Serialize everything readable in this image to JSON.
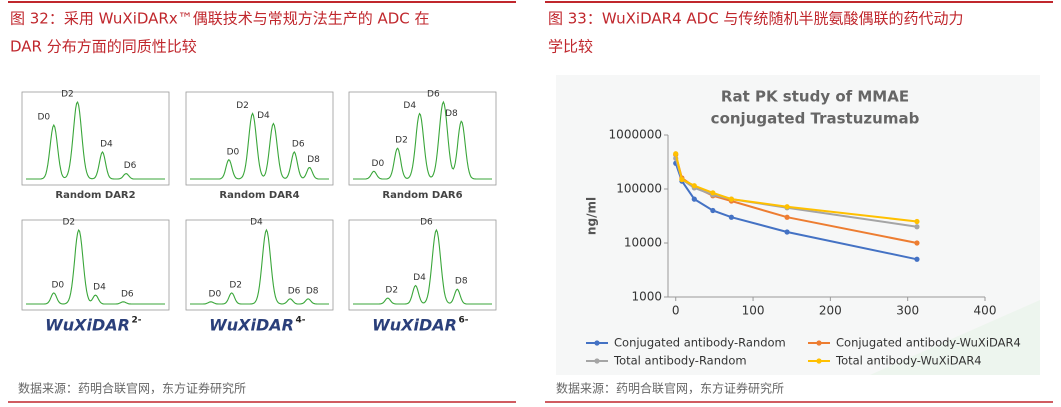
{
  "left": {
    "title_lines": [
      "图 32：采用 WuXiDARx™偶联技术与常规方法生产的 ADC 在",
      "DAR 分布方面的同质性比较"
    ],
    "panels": [
      {
        "caption": "Random DAR2",
        "peaks": [
          "D0",
          "D2",
          "D4",
          "D6"
        ]
      },
      {
        "caption": "Random DAR4",
        "peaks": [
          "D0",
          "D2",
          "D4",
          "D6",
          "D8"
        ]
      },
      {
        "caption": "Random DAR6",
        "peaks": [
          "D0",
          "D2",
          "D4",
          "D6",
          "D8"
        ]
      },
      {
        "logo": "WuXiDAR",
        "superscript": "2-",
        "peaks": [
          "D0",
          "D2",
          "D4",
          "D6"
        ]
      },
      {
        "logo": "WuXiDAR",
        "superscript": "4-",
        "peaks": [
          "D0",
          "D2",
          "D4",
          "D6",
          "D8"
        ]
      },
      {
        "logo": "WuXiDAR",
        "superscript": "6-",
        "peaks": [
          "D2",
          "D4",
          "D6",
          "D8"
        ]
      }
    ],
    "source": "数据来源：药明合联官网，东方证券研究所"
  },
  "right": {
    "title_lines": [
      "图 33：WuXiDAR4 ADC 与传统随机半胱氨酸偶联的药代动力",
      "学比较"
    ],
    "source": "数据来源：药明合联官网，东方证券研究所"
  },
  "chart_data": {
    "type": "line",
    "title": [
      "Rat PK study of MMAE",
      "conjugated Trastuzumab"
    ],
    "y_label": "ng/ml",
    "log_y": true,
    "xlim": [
      -10,
      400
    ],
    "xticks": [
      0,
      100,
      200,
      300,
      400
    ],
    "ylim": [
      1000,
      1000000
    ],
    "yticks": [
      1000,
      10000,
      100000,
      1000000
    ],
    "x": [
      0,
      8,
      24,
      48,
      72,
      144,
      312
    ],
    "series": [
      {
        "name": "Conjugated antibody-Random",
        "color": "#4472c4",
        "values": [
          300000,
          140000,
          65000,
          40000,
          30000,
          16000,
          5000
        ]
      },
      {
        "name": "Conjugated antibody-WuXiDAR4",
        "color": "#ed7d31",
        "values": [
          430000,
          160000,
          110000,
          75000,
          60000,
          30000,
          10000
        ]
      },
      {
        "name": "Total antibody-Random",
        "color": "#a5a5a5",
        "values": [
          370000,
          150000,
          105000,
          78000,
          65000,
          45000,
          20000
        ]
      },
      {
        "name": "Total antibody-WuXiDAR4",
        "color": "#ffc000",
        "values": [
          450000,
          150000,
          115000,
          85000,
          65000,
          47000,
          25000
        ]
      }
    ]
  }
}
